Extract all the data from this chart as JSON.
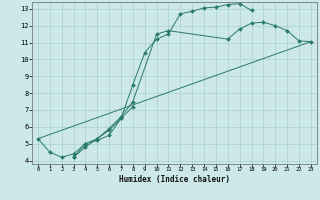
{
  "xlabel": "Humidex (Indice chaleur)",
  "bg_color": "#cce8e8",
  "line_color": "#2a7a6a",
  "grid_color": "#aacfcf",
  "xlim": [
    -0.5,
    23.5
  ],
  "ylim": [
    3.8,
    13.4
  ],
  "yticks": [
    4,
    5,
    6,
    7,
    8,
    9,
    10,
    11,
    12,
    13
  ],
  "xticks": [
    0,
    1,
    2,
    3,
    4,
    5,
    6,
    7,
    8,
    9,
    10,
    11,
    12,
    13,
    14,
    15,
    16,
    17,
    18,
    19,
    20,
    21,
    22,
    23
  ],
  "curve1_x": [
    0,
    1,
    2,
    3,
    4,
    5,
    6,
    7,
    8,
    9,
    10,
    11,
    12,
    13,
    14,
    15,
    16,
    17,
    18
  ],
  "curve1_y": [
    5.3,
    4.5,
    4.2,
    4.4,
    5.0,
    5.2,
    5.5,
    6.5,
    8.5,
    10.4,
    11.2,
    11.5,
    12.7,
    12.85,
    13.05,
    13.1,
    13.25,
    13.3,
    12.9
  ],
  "curve2_x": [
    3,
    4,
    5,
    6,
    7,
    8,
    10,
    11,
    16,
    17,
    18,
    19,
    20,
    21,
    22,
    23
  ],
  "curve2_y": [
    4.2,
    5.0,
    5.3,
    5.9,
    6.6,
    7.5,
    11.5,
    11.7,
    11.2,
    11.8,
    12.15,
    12.2,
    12.0,
    11.7,
    11.1,
    11.05
  ],
  "curve3_x": [
    3,
    4,
    5,
    6,
    7,
    8
  ],
  "curve3_y": [
    4.2,
    4.8,
    5.3,
    5.8,
    6.5,
    7.2
  ],
  "curve4_x": [
    0,
    23
  ],
  "curve4_y": [
    5.3,
    11.05
  ]
}
